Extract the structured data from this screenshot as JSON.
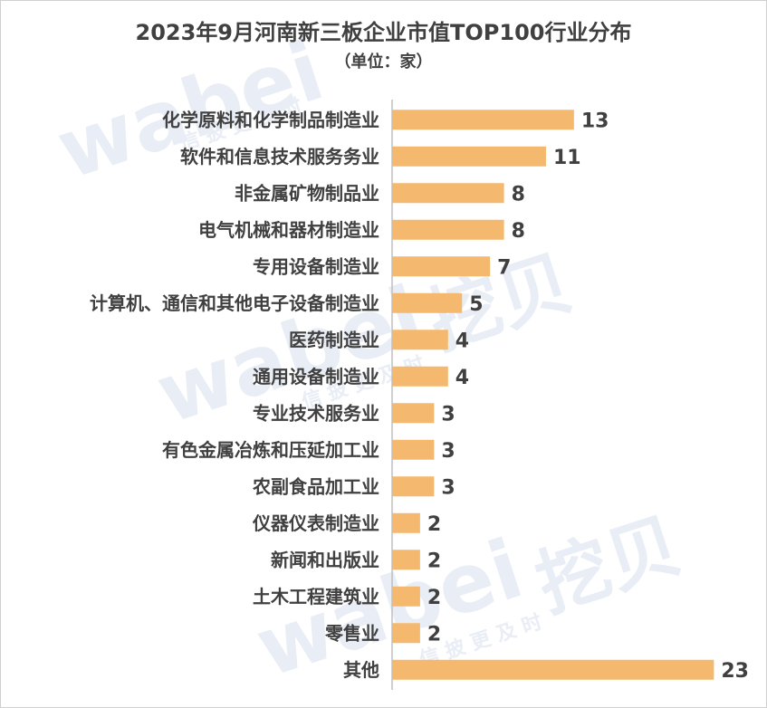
{
  "chart_data": {
    "type": "bar",
    "orientation": "horizontal",
    "title": "2023年9月河南新三板企业市值TOP100行业分布",
    "subtitle": "（单位：家）",
    "categories": [
      "化学原料和化学制品制造业",
      "软件和信息技术服务务业",
      "非金属矿物制品业",
      "电气机械和器材制造业",
      "专用设备制造业",
      "计算机、通信和其他电子设备制造业",
      "医药制造业",
      "通用设备制造业",
      "专业技术服务业",
      "有色金属冶炼和压延加工业",
      "农副食品加工业",
      "仪器仪表制造业",
      "新闻和出版业",
      "土木工程建筑业",
      "零售业",
      "其他"
    ],
    "values": [
      13,
      11,
      8,
      8,
      7,
      5,
      4,
      4,
      3,
      3,
      3,
      2,
      2,
      2,
      2,
      23
    ],
    "xlim": [
      0,
      24
    ],
    "grid": false,
    "bar_color": "#f4b96e",
    "axis_color": "#bfbfbf"
  },
  "watermark": {
    "brand": "wabei",
    "brand_cn": "挖贝",
    "slogan": "信 披 更 及 时"
  }
}
